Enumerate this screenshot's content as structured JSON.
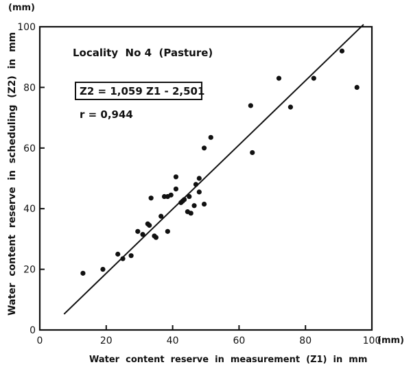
{
  "chart_data": {
    "type": "scatter",
    "title": "",
    "xlabel": "Water  content  reserve  in  measurement  (Z1)  in  mm",
    "ylabel": "Water  content  reserve  in  scheduling  (Z2)  in  mm",
    "x_unit": "(mm)",
    "y_unit": "(mm)",
    "xlim": [
      0,
      100
    ],
    "ylim": [
      0,
      100
    ],
    "xticks": [
      0,
      20,
      40,
      60,
      80,
      100
    ],
    "yticks": [
      0,
      20,
      40,
      60,
      80,
      100
    ],
    "xtick_labels": [
      "0",
      "20",
      "40",
      "60",
      "80",
      "100"
    ],
    "ytick_labels": [
      "0",
      "20",
      "40",
      "60",
      "80",
      "100"
    ],
    "grid": false,
    "legend": false,
    "annotations": {
      "locality": "Locality  No 4  (Pasture)",
      "equation": "Z2 = 1,059 Z1 - 2,501",
      "correlation": "r = 0,944"
    },
    "regression": {
      "slope": 1.059,
      "intercept": -2.501,
      "x_from": 7.3,
      "x_to": 97.5
    },
    "points": [
      {
        "x": 13,
        "y": 18.7
      },
      {
        "x": 19,
        "y": 20
      },
      {
        "x": 23.5,
        "y": 25
      },
      {
        "x": 25,
        "y": 23.5
      },
      {
        "x": 27.5,
        "y": 24.5
      },
      {
        "x": 29.5,
        "y": 32.5
      },
      {
        "x": 31,
        "y": 31.5
      },
      {
        "x": 32.5,
        "y": 35
      },
      {
        "x": 33,
        "y": 34.5
      },
      {
        "x": 33.5,
        "y": 43.5
      },
      {
        "x": 34.5,
        "y": 31
      },
      {
        "x": 35,
        "y": 30.5
      },
      {
        "x": 36.5,
        "y": 37.5
      },
      {
        "x": 37.5,
        "y": 44
      },
      {
        "x": 38.5,
        "y": 44
      },
      {
        "x": 38.5,
        "y": 32.5
      },
      {
        "x": 39.5,
        "y": 44.5
      },
      {
        "x": 41,
        "y": 50.5
      },
      {
        "x": 41,
        "y": 46.5
      },
      {
        "x": 42.5,
        "y": 42
      },
      {
        "x": 43,
        "y": 42.5
      },
      {
        "x": 43.5,
        "y": 43
      },
      {
        "x": 44.5,
        "y": 39
      },
      {
        "x": 45,
        "y": 44
      },
      {
        "x": 45.5,
        "y": 38.5
      },
      {
        "x": 46.5,
        "y": 41
      },
      {
        "x": 47,
        "y": 48
      },
      {
        "x": 48,
        "y": 50
      },
      {
        "x": 48,
        "y": 45.5
      },
      {
        "x": 49.5,
        "y": 41.5
      },
      {
        "x": 49.5,
        "y": 60
      },
      {
        "x": 51.5,
        "y": 63.5
      },
      {
        "x": 63.5,
        "y": 74
      },
      {
        "x": 64,
        "y": 58.5
      },
      {
        "x": 72,
        "y": 83
      },
      {
        "x": 75.5,
        "y": 73.5
      },
      {
        "x": 82.5,
        "y": 83
      },
      {
        "x": 91,
        "y": 92
      },
      {
        "x": 95.5,
        "y": 80
      }
    ]
  }
}
